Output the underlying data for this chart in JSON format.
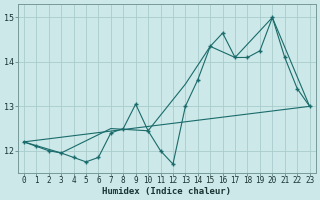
{
  "title": "",
  "xlabel": "Humidex (Indice chaleur)",
  "background_color": "#cce8e8",
  "grid_color": "#aacccc",
  "line_color": "#1a6b6b",
  "xlim": [
    -0.5,
    23.5
  ],
  "ylim": [
    11.5,
    15.3
  ],
  "yticks": [
    12,
    13,
    14,
    15
  ],
  "xticks": [
    0,
    1,
    2,
    3,
    4,
    5,
    6,
    7,
    8,
    9,
    10,
    11,
    12,
    13,
    14,
    15,
    16,
    17,
    18,
    19,
    20,
    21,
    22,
    23
  ],
  "line1_x": [
    0,
    1,
    2,
    3,
    4,
    5,
    6,
    7,
    8,
    9,
    10,
    11,
    12,
    13,
    14,
    15,
    16,
    17,
    18,
    19,
    20,
    21,
    22,
    23
  ],
  "line1_y": [
    12.2,
    12.1,
    12.0,
    11.95,
    11.85,
    11.75,
    11.85,
    12.4,
    12.5,
    13.05,
    12.45,
    12.0,
    11.7,
    13.0,
    13.6,
    14.35,
    14.65,
    14.1,
    14.1,
    14.25,
    15.0,
    14.1,
    13.4,
    13.0
  ],
  "line2_x": [
    0,
    3,
    7,
    10,
    13,
    15,
    17,
    20,
    23
  ],
  "line2_y": [
    12.2,
    11.95,
    12.5,
    12.45,
    13.5,
    14.35,
    14.1,
    15.0,
    13.0
  ],
  "line3_x": [
    0,
    23
  ],
  "line3_y": [
    12.2,
    13.0
  ],
  "xlabel_fontsize": 6.5,
  "tick_fontsize": 5.5
}
